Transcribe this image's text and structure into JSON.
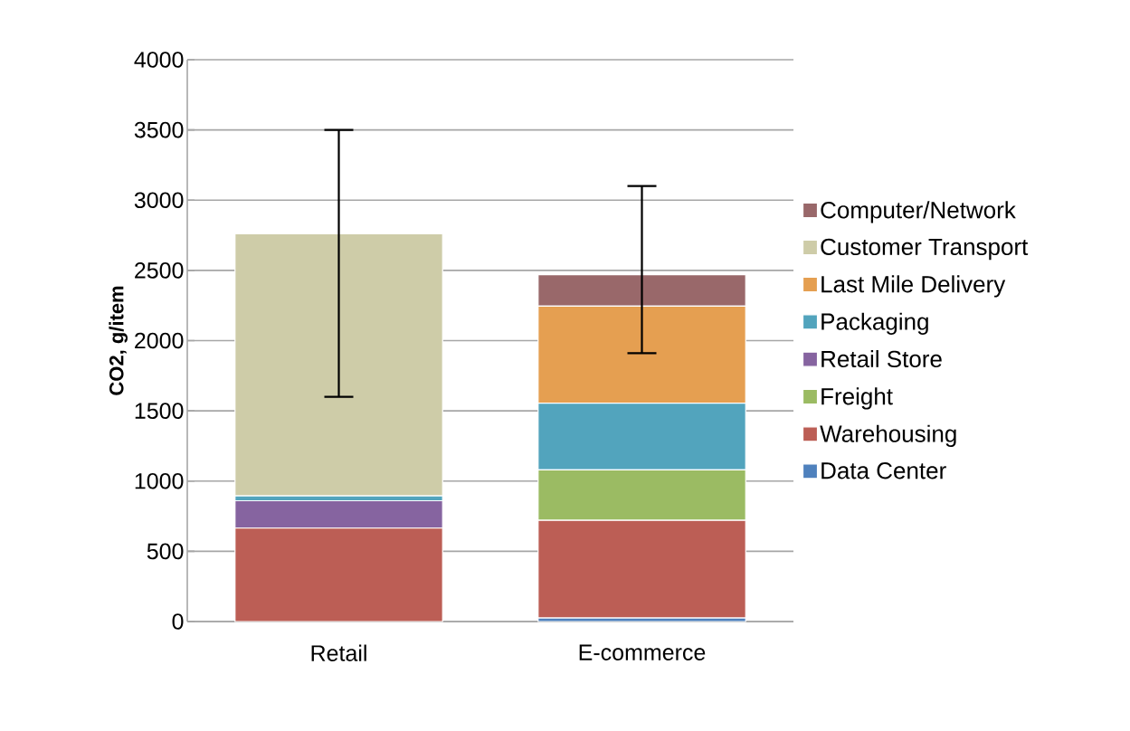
{
  "chart_data": {
    "type": "bar",
    "stacked": true,
    "ylabel": "CO2, g/item",
    "categories": [
      "Retail",
      "E-commerce"
    ],
    "series": [
      {
        "name": "Data Center",
        "color": "#4f81bd",
        "values": [
          0,
          25
        ]
      },
      {
        "name": "Warehousing",
        "color": "#bc5e55",
        "values": [
          665,
          695
        ]
      },
      {
        "name": "Freight",
        "color": "#9bbb63",
        "values": [
          0,
          360
        ]
      },
      {
        "name": "Retail Store",
        "color": "#8664a0",
        "values": [
          195,
          0
        ]
      },
      {
        "name": "Packaging",
        "color": "#52a4bd",
        "values": [
          35,
          475
        ]
      },
      {
        "name": "Last Mile Delivery",
        "color": "#e59f51",
        "values": [
          0,
          690
        ]
      },
      {
        "name": "Customer Transport",
        "color": "#cecca8",
        "values": [
          1865,
          0
        ],
        "errors": [
          [
            1600,
            3500
          ],
          null
        ]
      },
      {
        "name": "Computer/Network",
        "color": "#99686a",
        "values": [
          0,
          225
        ],
        "errors": [
          null,
          [
            1910,
            3100
          ]
        ]
      }
    ],
    "ylim": [
      0,
      4000
    ],
    "yticks": [
      0,
      500,
      1000,
      1500,
      2000,
      2500,
      3000,
      3500,
      4000
    ],
    "grid": "y",
    "legend": "right"
  }
}
